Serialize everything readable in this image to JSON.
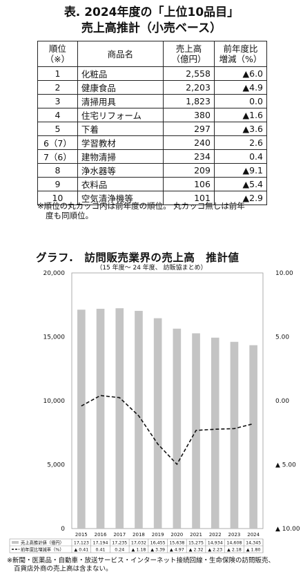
{
  "table": {
    "title_line1": "表. 2024年度の「上位10品目」",
    "title_line2": "売上高推計（小売ベース）",
    "headers": {
      "rank": [
        "順位",
        "（※）"
      ],
      "name": "商品名",
      "sales": [
        "売上高",
        "（億円）"
      ],
      "yoy": [
        "前年度比",
        "増減（%）"
      ]
    },
    "rows": [
      {
        "rank": "1",
        "name": "化粧品",
        "sales": "2,558",
        "yoy": "▲6.0"
      },
      {
        "rank": "2",
        "name": "健康食品",
        "sales": "2,203",
        "yoy": "▲4.9"
      },
      {
        "rank": "3",
        "name": "清掃用具",
        "sales": "1,823",
        "yoy": "0.0"
      },
      {
        "rank": "4",
        "name": "住宅リフォーム",
        "sales": "380",
        "yoy": "▲1.6"
      },
      {
        "rank": "5",
        "name": "下着",
        "sales": "297",
        "yoy": "▲3.6"
      },
      {
        "rank": "6（7）",
        "name": "学習教材",
        "sales": "240",
        "yoy": "2.6"
      },
      {
        "rank": "7（6）",
        "name": "建物清掃",
        "sales": "234",
        "yoy": "0.4"
      },
      {
        "rank": "8",
        "name": "浄水器等",
        "sales": "209",
        "yoy": "▲9.1"
      },
      {
        "rank": "9",
        "name": "衣料品",
        "sales": "106",
        "yoy": "▲5.4"
      },
      {
        "rank": "10",
        "name": "空気清浄機等",
        "sales": "101",
        "yoy": "▲2.9"
      }
    ],
    "note_line1": "※順位の丸カッコ内は前年度の順位。 丸カッコ無しは前年",
    "note_line2": "度も同順位。"
  },
  "graph": {
    "title": "グラフ.　訪問販売業界の売上高　推計値",
    "subtitle": "（15 年度～ 24 年度、 訪販協まとめ）",
    "footnote_line1": "※新聞・医薬品・自動車・放送サービス・インターネット接続回線・生命保険の訪問販売、",
    "footnote_line2": "百貨店外商の売上高は含まない。"
  },
  "chart_data": {
    "type": "bar",
    "categories": [
      "2015",
      "2016",
      "2017",
      "2018",
      "2019",
      "2020",
      "2021",
      "2022",
      "2023",
      "2024"
    ],
    "left_ticks": [
      "20,000",
      "15,000",
      "10,000",
      "5,000",
      "0"
    ],
    "right_ticks": [
      "10.00",
      "5.00",
      "0.00",
      "▲ 5.00",
      "▲ 10.00"
    ],
    "ylim_left": [
      0,
      20000
    ],
    "ylim_right": [
      -10,
      10
    ],
    "series": [
      {
        "name": "売上高推計値（億円）",
        "type": "bar",
        "axis": "left",
        "color": "#c4c4c4",
        "values": [
          17123,
          17194,
          17235,
          17032,
          16455,
          15638,
          15275,
          14934,
          14608,
          14345
        ],
        "labels": [
          "17,123",
          "17,194",
          "17,235",
          "17,032",
          "16,455",
          "15,638",
          "15,275",
          "14,934",
          "14,608",
          "14,345"
        ]
      },
      {
        "name": "前年度比増減率（%）",
        "type": "line",
        "axis": "right",
        "color": "#111111",
        "values": [
          -0.41,
          0.41,
          0.24,
          -1.18,
          -3.39,
          -4.97,
          -2.32,
          -2.23,
          -2.18,
          -1.8
        ],
        "labels": [
          "▲ 0.41",
          "0.41",
          "0.24",
          "▲ 1.18",
          "▲ 3.39",
          "▲ 4.97",
          "▲ 2.32",
          "▲ 2.23",
          "▲ 2.18",
          "▲ 1.80"
        ]
      }
    ],
    "grid": false,
    "legend": "bottom-table"
  }
}
